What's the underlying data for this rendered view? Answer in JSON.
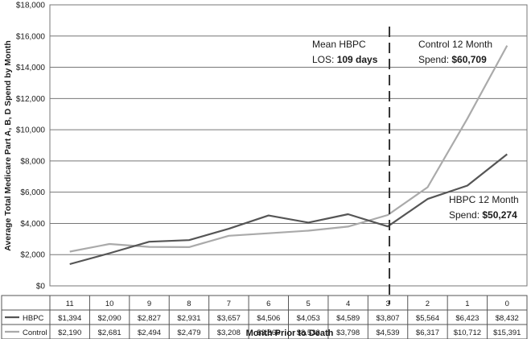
{
  "chart_data": {
    "type": "line",
    "xlabel": "Month Prior to Death",
    "ylabel": "Average Total Medicare Part A, B, D Spend by Month",
    "ylim": [
      0,
      18000
    ],
    "yticks": [
      "$0",
      "$2,000",
      "$4,000",
      "$6,000",
      "$8,000",
      "$10,000",
      "$12,000",
      "$14,000",
      "$16,000",
      "$18,000"
    ],
    "grid": true,
    "categories": [
      "11",
      "10",
      "9",
      "8",
      "7",
      "6",
      "5",
      "4",
      "3",
      "2",
      "1",
      "0"
    ],
    "series": [
      {
        "name": "HBPC",
        "color": "#555555",
        "values": [
          1394,
          2090,
          2827,
          2931,
          3657,
          4506,
          4053,
          4589,
          3807,
          5564,
          6423,
          8432
        ],
        "labels": [
          "$1,394",
          "$2,090",
          "$2,827",
          "$2,931",
          "$3,657",
          "$4,506",
          "$4,053",
          "$4,589",
          "$3,807",
          "$5,564",
          "$6,423",
          "$8,432"
        ]
      },
      {
        "name": "Control",
        "color": "#aaaaaa",
        "values": [
          2190,
          2681,
          2494,
          2479,
          3208,
          3366,
          3533,
          3798,
          4539,
          6317,
          10712,
          15391
        ],
        "labels": [
          "$2,190",
          "$2,681",
          "$2,494",
          "$2,479",
          "$3,208",
          "$3,366",
          "$3,533",
          "$3,798",
          "$4,539",
          "$6,317",
          "$10,712",
          "$15,391"
        ]
      }
    ],
    "marker_line_at": "3",
    "annotations": {
      "mean_los": {
        "line1": "Mean HBPC",
        "line2_prefix": "LOS: ",
        "line2_bold": "109 days"
      },
      "control_spend": {
        "line1": "Control 12 Month",
        "line2_prefix": "Spend: ",
        "line2_bold": "$60,709"
      },
      "hbpc_spend": {
        "line1": "HBPC 12 Month",
        "line2_prefix": "Spend: ",
        "line2_bold": "$50,274"
      }
    }
  }
}
